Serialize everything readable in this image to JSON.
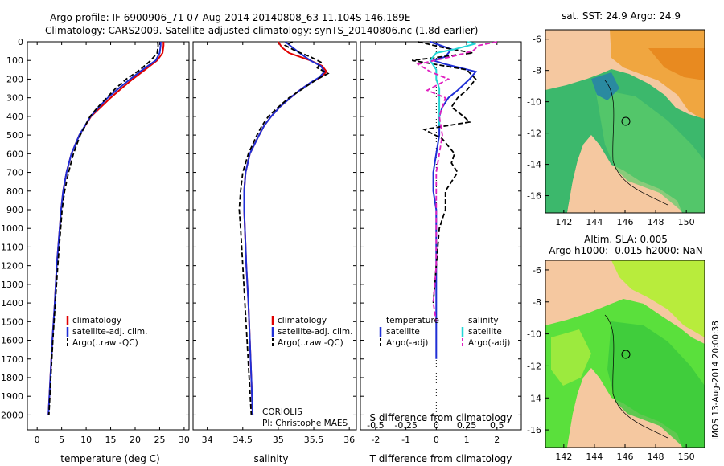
{
  "header": {
    "line1": "Argo profile: IF 6900906_71 07-Aug-2014 20140808_63 11.104S 146.189E",
    "line2": "Climatology: CARS2009. Satellite-adjusted climatology: synTS_20140806.nc (1.8d earlier)"
  },
  "colors": {
    "climatology": "#e00000",
    "satellite": "#1f2fd6",
    "argo": "#000000",
    "sal_satellite": "#22d6d6",
    "sal_argo": "#e020c0",
    "land": "#f5c8a0",
    "ocean_sst": "#3cb86c",
    "ocean_sla": "#5ae03c"
  },
  "chart_data": [
    {
      "type": "line",
      "xlabel": "temperature (deg C)",
      "ylabel": "",
      "xlim": [
        -2,
        31
      ],
      "ylim": [
        2080,
        0
      ],
      "xticks": [
        "0",
        "5",
        "10",
        "15",
        "20",
        "25",
        "30"
      ],
      "yticks": [
        "0",
        "100",
        "200",
        "300",
        "400",
        "500",
        "600",
        "700",
        "800",
        "900",
        "1000",
        "1100",
        "1200",
        "1300",
        "1400",
        "1500",
        "1600",
        "1700",
        "1800",
        "1900",
        "2000"
      ],
      "legend": [
        "climatology",
        "satellite-adj. clim.",
        "Argo(..raw -QC)"
      ],
      "series": [
        {
          "name": "climatology",
          "depth": [
            0,
            20,
            60,
            100,
            150,
            200,
            250,
            300,
            350,
            400,
            500,
            600,
            700,
            800,
            900,
            1000,
            1200,
            1400,
            1600,
            1800,
            2000
          ],
          "values": [
            25.8,
            25.8,
            25.6,
            24.5,
            22,
            19.5,
            17.2,
            15,
            13,
            11,
            8.6,
            7,
            6,
            5.3,
            4.9,
            4.6,
            4,
            3.6,
            3.1,
            2.7,
            2.3
          ]
        },
        {
          "name": "satellite-adj. clim.",
          "depth": [
            0,
            20,
            60,
            100,
            150,
            200,
            250,
            300,
            350,
            400,
            500,
            600,
            700,
            800,
            900,
            1000,
            1200,
            1400,
            1600,
            1800,
            2000
          ],
          "values": [
            25.2,
            25.2,
            25,
            24.2,
            21.5,
            19,
            16.6,
            14.4,
            12.6,
            10.9,
            8.6,
            7,
            6,
            5.3,
            4.9,
            4.6,
            4,
            3.6,
            3.1,
            2.7,
            2.3
          ]
        },
        {
          "name": "Argo(..raw -QC)",
          "depth": [
            0,
            20,
            60,
            100,
            150,
            200,
            250,
            300,
            350,
            400,
            500,
            600,
            700,
            800,
            900,
            1000,
            1200,
            1400,
            1600,
            1800,
            2000
          ],
          "values": [
            24.6,
            24.7,
            24.5,
            23.2,
            21,
            18.2,
            16,
            14.2,
            12.4,
            10.8,
            8.8,
            7.4,
            6.4,
            5.6,
            5.1,
            4.8,
            4.2,
            3.7,
            3.2,
            2.8,
            2.4
          ]
        }
      ]
    },
    {
      "type": "line",
      "xlabel": "salinity",
      "xlim": [
        33.8,
        36.1
      ],
      "ylim": [
        2080,
        0
      ],
      "xticks": [
        "34",
        "34.5",
        "35",
        "35.5",
        "36"
      ],
      "legend": [
        "climatology",
        "satellite-adj. clim.",
        "Argo(..raw -QC)"
      ],
      "annotation": [
        "CORIOLIS",
        "PI: Christophe MAES"
      ],
      "series": [
        {
          "name": "climatology",
          "depth": [
            0,
            30,
            60,
            100,
            130,
            160,
            190,
            220,
            260,
            300,
            350,
            400,
            450,
            500,
            600,
            700,
            800,
            900,
            1000,
            1200,
            1400,
            1600,
            1800,
            2000
          ],
          "values": [
            35.0,
            35.05,
            35.15,
            35.45,
            35.62,
            35.68,
            35.6,
            35.45,
            35.3,
            35.17,
            35.02,
            34.9,
            34.8,
            34.73,
            34.6,
            34.54,
            34.52,
            34.52,
            34.53,
            34.55,
            34.58,
            34.6,
            34.62,
            34.64
          ]
        },
        {
          "name": "satellite-adj. clim.",
          "depth": [
            0,
            30,
            60,
            100,
            130,
            160,
            190,
            220,
            260,
            300,
            350,
            400,
            450,
            500,
            600,
            700,
            800,
            900,
            1000,
            1200,
            1400,
            1600,
            1800,
            2000
          ],
          "values": [
            35.1,
            35.2,
            35.3,
            35.45,
            35.6,
            35.65,
            35.58,
            35.45,
            35.3,
            35.17,
            35.02,
            34.9,
            34.8,
            34.73,
            34.6,
            34.54,
            34.52,
            34.52,
            34.53,
            34.55,
            34.58,
            34.6,
            34.62,
            34.64
          ]
        },
        {
          "name": "Argo(..raw -QC)",
          "depth": [
            0,
            20,
            50,
            80,
            110,
            140,
            170,
            200,
            250,
            300,
            350,
            400,
            450,
            500,
            600,
            700,
            800,
            900,
            1000,
            1200,
            1400,
            1600,
            1800,
            2000
          ],
          "values": [
            35.2,
            35.1,
            35.25,
            35.45,
            35.6,
            35.55,
            35.7,
            35.55,
            35.35,
            35.15,
            35.0,
            34.86,
            34.77,
            34.7,
            34.58,
            34.5,
            34.47,
            34.45,
            34.47,
            34.5,
            34.53,
            34.56,
            34.59,
            34.62
          ]
        }
      ]
    },
    {
      "type": "line",
      "xlabel": "T difference from climatology",
      "xlabel2": "S difference from climatology",
      "xlim": [
        -2.5,
        2.8
      ],
      "ylim": [
        2080,
        0
      ],
      "xticks": [
        "-2",
        "-1",
        "0",
        "1",
        "2"
      ],
      "xticks2": [
        "-0.5",
        "-0.25",
        "0",
        "0.25",
        "0.5"
      ],
      "legend_title_left": "temperature",
      "legend_title_right": "salinity",
      "legend": [
        "satellite",
        "Argo(-adj)",
        "satellite",
        "Argo(-adj)"
      ],
      "series": [
        {
          "name": "satellite",
          "depth": [
            0,
            40,
            80,
            100,
            120,
            160,
            200,
            260,
            300,
            350,
            400,
            500,
            600,
            700,
            800,
            900,
            1000,
            1200,
            1400,
            1600,
            1700
          ],
          "values": [
            -0.2,
            0.5,
            0.3,
            -0.1,
            0.3,
            1.3,
            1.1,
            0.7,
            0.4,
            0.2,
            0.1,
            0.1,
            0.0,
            -0.1,
            -0.1,
            0.0,
            0.0,
            0.0,
            0.0,
            0.0,
            0.0
          ]
        },
        {
          "name": "Argo(-adj)",
          "depth": [
            0,
            30,
            60,
            100,
            150,
            200,
            260,
            300,
            350,
            400,
            430,
            470,
            520,
            560,
            600,
            650,
            700,
            800,
            900,
            1000,
            1200,
            1400
          ],
          "values": [
            -0.6,
            0.2,
            1.2,
            -0.8,
            1.0,
            1.3,
            1.0,
            0.7,
            0.5,
            0.9,
            1.1,
            -0.4,
            0.2,
            0.4,
            0.6,
            0.5,
            0.7,
            0.3,
            0.3,
            0.1,
            0.0,
            -0.1
          ]
        },
        {
          "name": "satellite",
          "depth": [
            0,
            10,
            40,
            60,
            100,
            150,
            200,
            250,
            300,
            400,
            450
          ],
          "values": [
            1.0,
            1.3,
            0.6,
            0.0,
            -0.2,
            0.0,
            0.0,
            0.1,
            0.1,
            0.1,
            0.1
          ]
        },
        {
          "name": "Argo(-adj)",
          "depth": [
            0,
            20,
            50,
            80,
            120,
            160,
            200,
            260,
            300,
            400,
            500,
            600,
            700,
            800,
            1000,
            1200,
            1400,
            1500
          ],
          "values": [
            2.0,
            1.4,
            1.2,
            0.5,
            -0.6,
            -0.2,
            0.4,
            -0.3,
            0.3,
            0.1,
            0.2,
            0.1,
            0.0,
            0.0,
            0.0,
            0.0,
            -0.1,
            0.0
          ]
        }
      ]
    }
  ],
  "maps": {
    "top": {
      "title": "sat. SST: 24.9 Argo: 24.9",
      "xticks": [
        "142",
        "144",
        "146",
        "148",
        "150"
      ],
      "yticks": [
        "-6",
        "-8",
        "-10",
        "-12",
        "-14",
        "-16"
      ]
    },
    "bottom": {
      "title1": "Altim. SLA: 0.005",
      "title2": "Argo h1000: -0.015 h2000: NaN",
      "xticks": [
        "142",
        "144",
        "146",
        "148",
        "150"
      ],
      "yticks": [
        "-6",
        "-8",
        "-10",
        "-12",
        "-14",
        "-16"
      ]
    },
    "footer": "IMOS 13-Aug-2014 20:00:38"
  }
}
